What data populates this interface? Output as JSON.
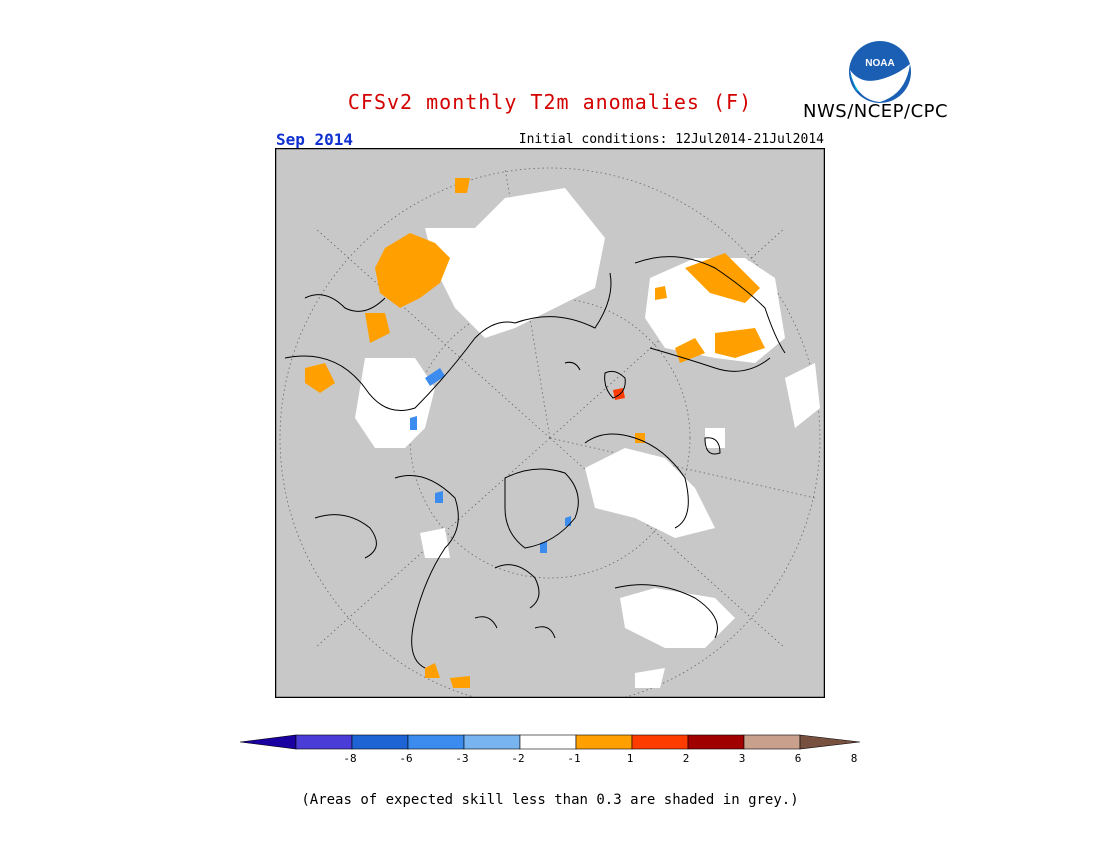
{
  "header": {
    "title": "CFSv2 monthly T2m anomalies (F)",
    "agency": "NWS/NCEP/CPC",
    "month": "Sep 2014",
    "initial_conditions": "Initial conditions: 12Jul2014-21Jul2014"
  },
  "logo": {
    "text": "NOAA",
    "icon": "noaa-logo-icon"
  },
  "colors": {
    "title": "#d40000",
    "month": "#1030d0",
    "ocean_grey": "#c8c8c8",
    "neutral_white": "#ffffff",
    "warm_orange": "#ffa500",
    "red": "#ff3c00"
  },
  "legend": {
    "ticks": [
      "-8",
      "-6",
      "-3",
      "-2",
      "-1",
      "1",
      "2",
      "3",
      "6",
      "8"
    ],
    "colors": [
      "#1a00a0",
      "#4a3cd6",
      "#1e64d4",
      "#3c8cf0",
      "#78b4f0",
      "#ffffff",
      "#ffa000",
      "#ff3c00",
      "#a00000",
      "#c8a08c",
      "#785040"
    ]
  },
  "footnote": "(Areas of expected skill less than 0.3 are shaded in grey.)"
}
